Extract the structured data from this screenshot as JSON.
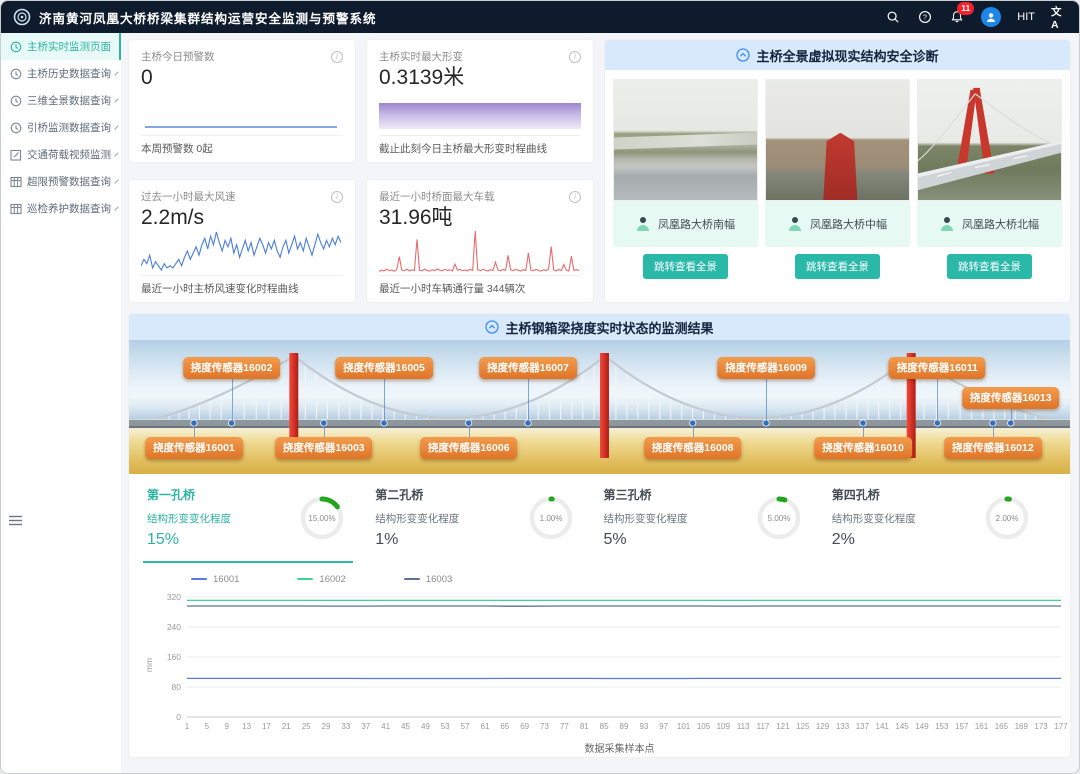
{
  "colors": {
    "accent_teal": "#2db3a5",
    "header_bg": "#0d1b2d",
    "section_header_bg": "#d8e9fb",
    "sensor_tag_orange": "#e8833a",
    "gauge_green": "#23a51d",
    "badge_red": "#f5222d"
  },
  "header": {
    "title": "济南黄河凤凰大桥桥梁集群结构运营安全监测与预警系统",
    "badge": "11",
    "user": "HIT",
    "lang_label": "文A"
  },
  "sidebar": {
    "items": [
      {
        "label": "主桥实时监测页面",
        "icon": "clock",
        "active": true,
        "expandable": false
      },
      {
        "label": "主桥历史数据查询",
        "icon": "clock",
        "active": false,
        "expandable": true
      },
      {
        "label": "三维全景数据查询",
        "icon": "clock",
        "active": false,
        "expandable": true
      },
      {
        "label": "引桥监测数据查询",
        "icon": "clock",
        "active": false,
        "expandable": true
      },
      {
        "label": "交通荷载视频监测",
        "icon": "edit",
        "active": false,
        "expandable": true
      },
      {
        "label": "超限预警数据查询",
        "icon": "table",
        "active": false,
        "expandable": true
      },
      {
        "label": "巡检养护数据查询",
        "icon": "table",
        "active": false,
        "expandable": true
      }
    ]
  },
  "stat_cards": [
    {
      "title": "主桥今日预警数",
      "value": "0",
      "footer": "本周预警数 0起"
    },
    {
      "title": "主桥实时最大形变",
      "value": "0.3139米",
      "footer": "截止此刻今日主桥最大形变时程曲线"
    },
    {
      "title": "过去一小时最大风速",
      "value": "2.2m/s",
      "footer": "最近一小时主桥风速变化时程曲线"
    },
    {
      "title": "最近一小时桥面最大车载",
      "value": "31.96吨",
      "footer": "最近一小时车辆通行量 344辆次"
    }
  ],
  "panorama": {
    "title": "主桥全景虚拟现实结构安全诊断",
    "cameras": [
      {
        "name": "凤凰路大桥南幅",
        "button": "跳转查看全景"
      },
      {
        "name": "凤凰路大桥中幅",
        "button": "跳转查看全景"
      },
      {
        "name": "凤凰路大桥北幅",
        "button": "跳转查看全景"
      }
    ]
  },
  "bridge_section": {
    "title": "主桥钢箱梁挠度实时状态的监测结果",
    "sensor_prefix": "挠度传感器",
    "sensors": [
      {
        "id": "16001",
        "row": "bottom",
        "x": 6.9
      },
      {
        "id": "16002",
        "row": "top",
        "x": 10.9
      },
      {
        "id": "16003",
        "row": "bottom",
        "x": 20.7
      },
      {
        "id": "16005",
        "row": "top",
        "x": 27.1
      },
      {
        "id": "16006",
        "row": "bottom",
        "x": 36.1
      },
      {
        "id": "16007",
        "row": "top",
        "x": 42.4
      },
      {
        "id": "16008",
        "row": "bottom",
        "x": 59.9
      },
      {
        "id": "16009",
        "row": "top",
        "x": 67.7
      },
      {
        "id": "16010",
        "row": "bottom",
        "x": 78.0
      },
      {
        "id": "16011",
        "row": "top",
        "x": 85.9
      },
      {
        "id": "16012",
        "row": "bottom",
        "x": 91.8
      },
      {
        "id": "16013",
        "row": "top2",
        "x": 93.7
      }
    ]
  },
  "spans": [
    {
      "name": "第一孔桥",
      "subtitle": "结构形变变化程度",
      "percent_text": "15%",
      "gauge_label": "15.00%",
      "value": 15,
      "active": true
    },
    {
      "name": "第二孔桥",
      "subtitle": "结构形变变化程度",
      "percent_text": "1%",
      "gauge_label": "1.00%",
      "value": 1,
      "active": false
    },
    {
      "name": "第三孔桥",
      "subtitle": "结构形变变化程度",
      "percent_text": "5%",
      "gauge_label": "5.00%",
      "value": 5,
      "active": false
    },
    {
      "name": "第四孔桥",
      "subtitle": "结构形变变化程度",
      "percent_text": "2%",
      "gauge_label": "2.00%",
      "value": 2,
      "active": false
    }
  ],
  "chart_data": [
    {
      "id": "deflection_time_history",
      "type": "line",
      "title": "",
      "xlabel": "数据采集样本点",
      "ylabel": "mm",
      "ylim": [
        0,
        320
      ],
      "yticks": [
        0,
        80,
        160,
        240,
        320
      ],
      "grid": true,
      "legend_position": "top-left",
      "x": [
        1,
        5,
        9,
        13,
        17,
        21,
        25,
        29,
        33,
        37,
        41,
        45,
        49,
        53,
        57,
        61,
        65,
        69,
        73,
        77,
        81,
        85,
        89,
        93,
        97,
        101,
        105,
        109,
        113,
        117,
        121,
        125,
        129,
        133,
        137,
        141,
        145,
        149,
        153,
        157,
        161,
        165,
        169,
        173,
        177
      ],
      "series": [
        {
          "name": "16001",
          "color": "#5a78e4",
          "values": [
            103,
            103,
            103,
            103,
            103,
            103,
            103,
            103,
            103,
            102.8,
            102.8,
            102.8,
            102.7,
            102.7,
            102.7,
            102.8,
            103,
            103,
            103,
            103,
            103,
            102.7,
            102.6,
            102.6,
            102.7,
            102.8,
            103,
            103,
            103,
            103,
            103,
            103,
            103,
            102.9,
            102.9,
            103,
            103,
            103,
            103,
            103,
            103,
            103,
            103,
            103,
            103
          ]
        },
        {
          "name": "16002",
          "color": "#3fd292",
          "values": [
            311,
            311,
            311,
            311,
            311,
            311,
            311,
            311,
            311,
            311,
            311,
            311,
            311,
            311,
            311,
            311,
            311,
            311,
            311,
            311,
            311,
            311,
            311,
            311,
            311,
            311,
            311,
            311,
            311,
            311,
            311,
            311,
            311,
            311,
            311,
            311,
            311,
            311,
            311,
            311,
            311,
            311,
            311,
            311,
            311
          ]
        },
        {
          "name": "16003",
          "color": "#5d7092",
          "values": [
            296,
            296,
            296,
            296,
            296,
            296,
            296,
            295.6,
            295.6,
            295.6,
            296,
            296,
            296,
            296,
            296,
            296,
            295.5,
            295.5,
            295.6,
            296,
            296,
            296,
            296,
            296,
            296,
            296,
            296,
            295.7,
            295.7,
            296,
            296,
            296,
            296,
            296,
            296,
            296,
            296,
            296,
            296,
            296,
            296,
            296,
            296,
            296,
            296
          ]
        }
      ]
    },
    {
      "id": "wind_speed_sparkline",
      "type": "line",
      "title": "过去一小时最大风速",
      "color": "#4b7de0",
      "values": [
        0.6,
        0.9,
        0.7,
        1.1,
        0.5,
        0.8,
        0.6,
        0.4,
        0.7,
        0.5,
        0.6,
        0.5,
        0.7,
        0.9,
        0.6,
        1.0,
        1.3,
        0.9,
        1.2,
        1.5,
        1.1,
        1.6,
        1.9,
        1.4,
        2.0,
        1.6,
        2.2,
        1.7,
        1.3,
        1.8,
        1.5,
        1.9,
        1.2,
        1.6,
        1.0,
        1.4,
        1.8,
        1.3,
        1.7,
        1.1,
        1.5,
        1.9,
        1.6,
        1.2,
        1.7,
        1.4,
        1.8,
        1.3,
        1.0,
        1.5,
        1.8,
        1.2,
        1.6,
        2.0,
        1.4,
        1.7,
        1.3,
        1.9,
        1.5,
        1.1,
        1.6,
        2.1,
        1.7,
        1.4,
        1.8,
        1.5,
        1.9,
        1.6,
        2.0,
        1.7
      ]
    },
    {
      "id": "vehicle_load_sparkline",
      "type": "line",
      "title": "最近一小时桥面最大车载",
      "color": "#e96b6b",
      "values": [
        1.2,
        2.1,
        1.5,
        2.8,
        1.8,
        2.3,
        1.4,
        2.6,
        12.5,
        2.2,
        1.7,
        2.9,
        1.5,
        2.4,
        1.9,
        25.6,
        2.1,
        1.6,
        2.8,
        2.0,
        1.4,
        2.5,
        1.8,
        3.1,
        2.2,
        1.6,
        2.9,
        1.9,
        2.4,
        1.5,
        6.8,
        2.1,
        2.7,
        1.8,
        2.3,
        1.6,
        2.8,
        2.0,
        31.96,
        2.4,
        1.7,
        2.9,
        2.1,
        1.5,
        2.6,
        1.9,
        8.2,
        2.3,
        1.6,
        2.7,
        2.0,
        13.5,
        2.4,
        1.8,
        2.9,
        2.1,
        1.5,
        2.6,
        1.9,
        15.2,
        2.2,
        1.7,
        2.8,
        2.0,
        1.4,
        2.5,
        1.8,
        3.0,
        20.1,
        2.3,
        1.6,
        2.7,
        1.9,
        6.5,
        2.2,
        1.5,
        12.8,
        2.0,
        2.6,
        1.8
      ]
    },
    {
      "id": "span_deformation_gauges",
      "type": "pie",
      "title": "结构形变变化程度",
      "items": [
        {
          "label": "第一孔桥",
          "value": 15
        },
        {
          "label": "第二孔桥",
          "value": 1
        },
        {
          "label": "第三孔桥",
          "value": 5
        },
        {
          "label": "第四孔桥",
          "value": 2
        }
      ]
    }
  ]
}
